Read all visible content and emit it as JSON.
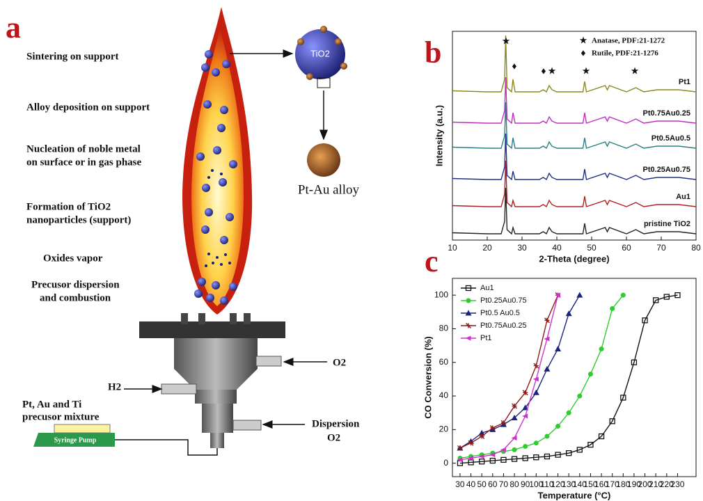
{
  "diagram": {
    "panel_label": "a",
    "steps": [
      [
        "Sintering on support"
      ],
      [
        "Alloy deposition on support"
      ],
      [
        "Nucleation of noble metal",
        "on surface or in  gas phase"
      ],
      [
        "Formation of TiO2",
        "nanoparticles (support)"
      ],
      [
        "Oxides vapor"
      ],
      [
        "Precusor dispersion",
        "and combustion"
      ]
    ],
    "support_label": "TiO2",
    "alloy_label": "Pt-Au alloy",
    "o2_label": "O2",
    "h2_label": "H2",
    "mixture_label": [
      "Pt, Au and Ti",
      "precusor mixture"
    ],
    "pump_label": "Syringe Pump",
    "dispersion_label": [
      "Dispersion",
      "O2"
    ]
  },
  "chart_data": [
    {
      "type": "line",
      "panel_label": "b",
      "xlabel": "2-Theta (degree)",
      "ylabel": "Intensity (a.u.)",
      "phase_legend": [
        "Anatase, PDF:21-1272",
        "Rutile, PDF:21-1276"
      ],
      "x": [
        10,
        20,
        24,
        25,
        25.3,
        25.7,
        27,
        27.4,
        28,
        35,
        36.1,
        37,
        37.8,
        38.6,
        40,
        47.5,
        48,
        48.5,
        53.9,
        54.5,
        55.1,
        60,
        62.7,
        65,
        68.8,
        70.3,
        75,
        80
      ],
      "xlim": [
        10,
        80
      ],
      "xticks": [
        10,
        20,
        30,
        40,
        50,
        60,
        70,
        80
      ],
      "ylim": [
        0,
        100
      ],
      "series": [
        {
          "name": "Pt1",
          "color": "#8a8a1a",
          "values": [
            71.5,
            71,
            71,
            77,
            98,
            73,
            71,
            77,
            71,
            71,
            72,
            71,
            74,
            72,
            71,
            71,
            76,
            71,
            74,
            72,
            74,
            71,
            73,
            71,
            72,
            72,
            72,
            71
          ]
        },
        {
          "name": "Pt0.75Au0.25",
          "color": "#c030c0",
          "values": [
            56.5,
            56,
            56,
            62,
            78,
            58,
            56,
            61,
            56,
            56,
            57,
            56,
            59,
            57,
            56,
            56,
            61,
            56,
            59,
            57,
            59,
            56,
            58,
            56,
            57,
            57,
            57,
            56
          ]
        },
        {
          "name": "Pt0.5Au0.5",
          "color": "#2a8080",
          "values": [
            44.5,
            44,
            44,
            50,
            66,
            46,
            44,
            49,
            44,
            44,
            45,
            44,
            47,
            45,
            44,
            44,
            49,
            44,
            47,
            45,
            47,
            44,
            46,
            44,
            45,
            45,
            45,
            44
          ]
        },
        {
          "name": "Pt0.25Au0.75",
          "color": "#20308a",
          "values": [
            29.5,
            29,
            29,
            35,
            51,
            31,
            29,
            33,
            29,
            29,
            30,
            29,
            32,
            30,
            29,
            29,
            34,
            29,
            32,
            30,
            32,
            29,
            31,
            29,
            30,
            30,
            30,
            29
          ]
        },
        {
          "name": "Au1",
          "color": "#b02020",
          "values": [
            16.5,
            16,
            16,
            22,
            38,
            18,
            16,
            19,
            16,
            16,
            17,
            16,
            19,
            17,
            16,
            16,
            21,
            16,
            19,
            17,
            19,
            16,
            18,
            16,
            17,
            17,
            17,
            16
          ]
        },
        {
          "name": "pristine TiO2",
          "color": "#222222",
          "values": [
            3.5,
            3,
            3,
            9,
            25,
            5,
            3,
            6,
            3,
            3,
            4,
            3,
            6,
            4,
            3,
            3,
            8,
            3,
            6,
            4,
            6,
            3,
            5,
            3,
            4,
            4,
            4,
            3
          ]
        }
      ]
    },
    {
      "type": "line",
      "panel_label": "c",
      "xlabel": "Temperature (°C)",
      "ylabel": "CO Conversion (%)",
      "xlim": [
        23,
        247
      ],
      "xticks": [
        30,
        40,
        50,
        60,
        70,
        80,
        90,
        100,
        110,
        120,
        130,
        140,
        150,
        160,
        170,
        180,
        190,
        200,
        210,
        220,
        230
      ],
      "ylim": [
        -8,
        110
      ],
      "yticks": [
        0,
        20,
        40,
        60,
        80,
        100
      ],
      "legend": "upper left",
      "series": [
        {
          "name": "Au1",
          "color": "#111111",
          "marker": "square",
          "x": [
            30,
            40,
            50,
            60,
            70,
            80,
            90,
            100,
            110,
            120,
            130,
            140,
            150,
            160,
            170,
            180,
            190,
            200,
            210,
            220,
            230
          ],
          "values": [
            0,
            0.5,
            1,
            1.5,
            2,
            2.5,
            3,
            3.5,
            4,
            5,
            6,
            8,
            11,
            16,
            25,
            39,
            60,
            85,
            97,
            99,
            100
          ]
        },
        {
          "name": "Pt0.25Au0.75",
          "color": "#2ecc2e",
          "marker": "circle",
          "x": [
            30,
            40,
            50,
            60,
            70,
            80,
            90,
            100,
            110,
            120,
            130,
            140,
            150,
            160,
            170,
            180
          ],
          "values": [
            3,
            4,
            5,
            6,
            7,
            8,
            10,
            12,
            16,
            22,
            30,
            40,
            53,
            68,
            92,
            100
          ]
        },
        {
          "name": "Pt0.5 Au0.5",
          "color": "#1a237e",
          "marker": "triangle",
          "x": [
            30,
            40,
            50,
            60,
            70,
            80,
            90,
            100,
            110,
            120,
            130,
            140
          ],
          "values": [
            9,
            13,
            18,
            20,
            23,
            27,
            33,
            42,
            56,
            68,
            89,
            100
          ]
        },
        {
          "name": "Pt0.75Au0.25",
          "color": "#8b1a1a",
          "marker": "star",
          "x": [
            30,
            40,
            50,
            60,
            70,
            80,
            90,
            100,
            110,
            120
          ],
          "values": [
            9,
            12,
            16,
            21,
            24,
            34,
            42,
            58,
            85,
            100
          ]
        },
        {
          "name": "Pt1",
          "color": "#cc33cc",
          "marker": "left",
          "x": [
            30,
            40,
            50,
            60,
            70,
            80,
            90,
            100,
            110,
            120
          ],
          "values": [
            2,
            3,
            4,
            5,
            8,
            15,
            28,
            50,
            74,
            100
          ]
        }
      ]
    }
  ]
}
